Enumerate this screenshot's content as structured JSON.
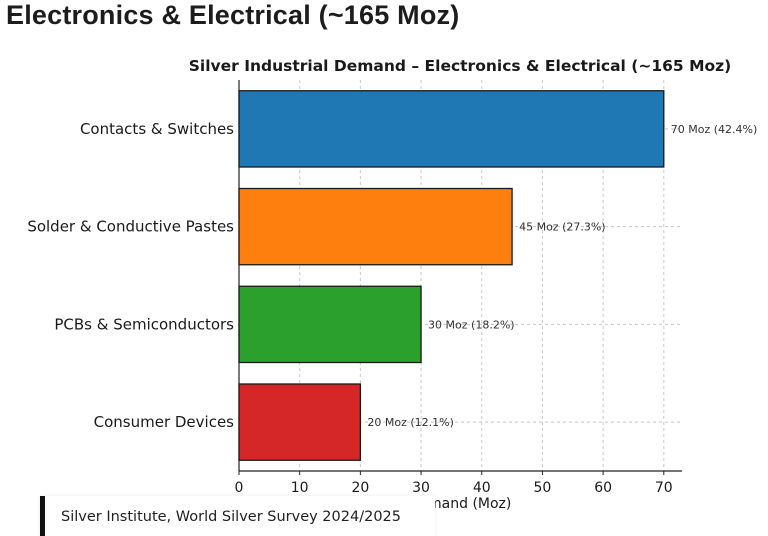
{
  "page": {
    "heading": "Electronics & Electrical (~165 Moz)",
    "source": "Silver Institute, World Silver Survey 2024/2025"
  },
  "chart_data": {
    "type": "bar",
    "orientation": "horizontal",
    "title": "Silver Industrial Demand – Electronics & Electrical (~165 Moz)",
    "xlabel": "Demand (Moz)",
    "ylabel": "",
    "xlim": [
      0,
      73
    ],
    "xticks": [
      0,
      10,
      20,
      30,
      40,
      50,
      60,
      70
    ],
    "grid": true,
    "categories": [
      "Contacts & Switches",
      "Solder & Conductive Pastes",
      "PCBs & Semiconductors",
      "Consumer Devices"
    ],
    "values": [
      70,
      45,
      30,
      20
    ],
    "data_labels": [
      "70 Moz (42.4%)",
      "45 Moz (27.3%)",
      "30 Moz (18.2%)",
      "20 Moz (12.1%)"
    ],
    "colors": [
      "#1f77b4",
      "#ff7f0e",
      "#2ca02c",
      "#d62728"
    ]
  }
}
